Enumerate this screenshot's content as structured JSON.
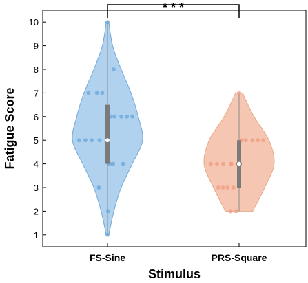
{
  "chart_data": {
    "type": "violin",
    "title": "",
    "xlabel": "Stimulus",
    "ylabel": "Fatigue Score",
    "ylim": [
      0.5,
      10.5
    ],
    "yticks": [
      1,
      2,
      3,
      4,
      5,
      6,
      7,
      8,
      9,
      10
    ],
    "categories": [
      "FS-Sine",
      "PRS-Square"
    ],
    "significance": {
      "label": "* * *",
      "between": [
        "FS-Sine",
        "PRS-Square"
      ]
    },
    "grid": false,
    "legend": "none",
    "series": [
      {
        "category": "FS-Sine",
        "color": "#a8cdec",
        "edge_color": "#6fa8d8",
        "point_color": "#6aa6d9",
        "points": [
          10,
          8,
          7,
          7,
          7,
          6,
          6,
          6,
          6,
          6,
          5,
          5,
          5,
          5,
          5,
          4,
          4,
          4,
          3,
          2,
          1
        ],
        "median": 5,
        "q1": 4,
        "q3": 6.5,
        "density": [
          [
            1,
            0.03
          ],
          [
            2,
            0.15
          ],
          [
            3,
            0.32
          ],
          [
            4,
            0.58
          ],
          [
            5,
            0.82
          ],
          [
            6,
            0.72
          ],
          [
            7,
            0.55
          ],
          [
            8,
            0.32
          ],
          [
            9,
            0.12
          ],
          [
            10,
            0.03
          ]
        ]
      },
      {
        "category": "PRS-Square",
        "color": "#f4c1aa",
        "edge_color": "#e8a88a",
        "point_color": "#ef9c80",
        "points": [
          7,
          5,
          5,
          5,
          5,
          5,
          4,
          4,
          4,
          4,
          4,
          4,
          3,
          3,
          3,
          3,
          2,
          2
        ],
        "median": 4,
        "q1": 3,
        "q3": 5,
        "density": [
          [
            2,
            0.32
          ],
          [
            3,
            0.6
          ],
          [
            4,
            0.82
          ],
          [
            5,
            0.7
          ],
          [
            6,
            0.35
          ],
          [
            7,
            0.08
          ]
        ]
      }
    ]
  }
}
